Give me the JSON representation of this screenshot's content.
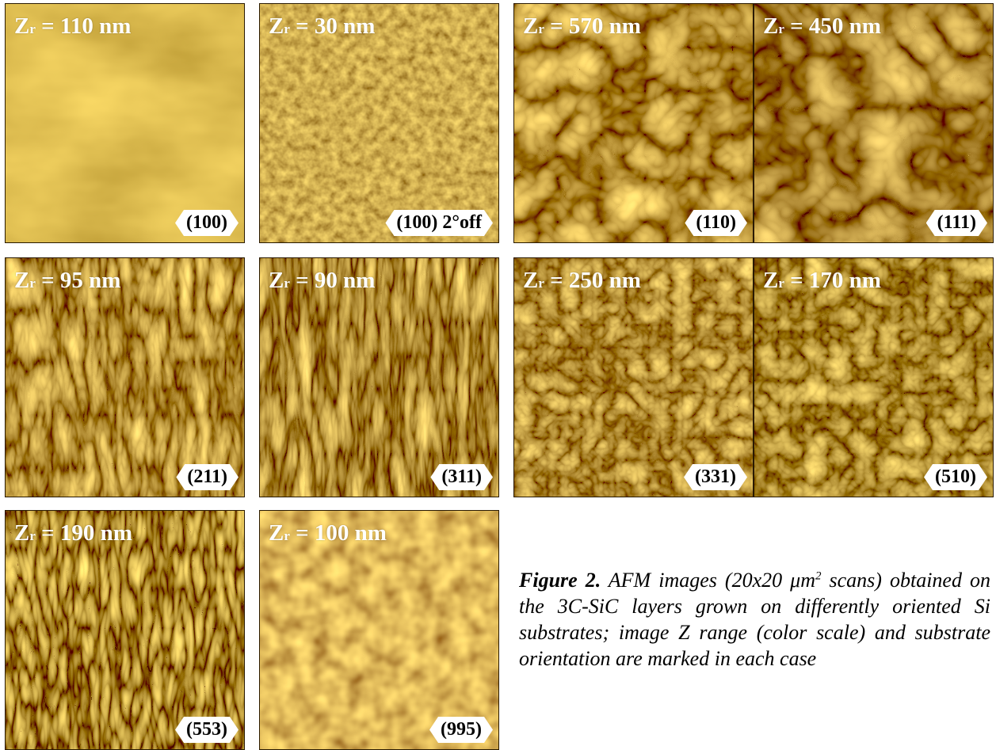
{
  "panels": [
    {
      "z_prefix": "Z",
      "z_sub": "r",
      "z_value": " = 110 nm",
      "orientation": "(100)",
      "texture": "tex-smooth",
      "base": "#c58f14"
    },
    {
      "z_prefix": "Z",
      "z_sub": "r",
      "z_value": " = 30 nm",
      "orientation": "(100) 2°off",
      "texture": "tex-grain",
      "base": "#9e6a08"
    },
    {
      "z_prefix": "Z",
      "z_sub": "r",
      "z_value": " = 570 nm",
      "orientation": "(110)",
      "texture": "tex-blocky",
      "base": "#b17a0c"
    },
    {
      "z_prefix": "Z",
      "z_sub": "r",
      "z_value": " = 450 nm",
      "orientation": "(111)",
      "texture": "tex-blocky2",
      "base": "#a56f0a"
    },
    {
      "z_prefix": "Z",
      "z_sub": "r",
      "z_value": " = 95 nm",
      "orientation": "(211)",
      "texture": "tex-streak",
      "base": "#a36b08"
    },
    {
      "z_prefix": "Z",
      "z_sub": "r",
      "z_value": " = 90 nm",
      "orientation": "(311)",
      "texture": "tex-streakv",
      "base": "#9a6406"
    },
    {
      "z_prefix": "Z",
      "z_sub": "r",
      "z_value": " = 250 nm",
      "orientation": "(331)",
      "texture": "tex-facet",
      "base": "#a97208"
    },
    {
      "z_prefix": "Z",
      "z_sub": "r",
      "z_value": " = 170 nm",
      "orientation": "(510)",
      "texture": "tex-facet2",
      "base": "#9d6708"
    },
    {
      "z_prefix": "Z",
      "z_sub": "r",
      "z_value": " = 190 nm",
      "orientation": "(553)",
      "texture": "tex-ridge",
      "base": "#a06a08"
    },
    {
      "z_prefix": "Z",
      "z_sub": "r",
      "z_value": " = 100 nm",
      "orientation": "(995)",
      "texture": "tex-cells",
      "base": "#c58a0e"
    }
  ],
  "caption": {
    "figure": "Figure 2.",
    "before_sup": " AFM images (20x20 μm",
    "sup": "2",
    "after_sup": " scans) obtained on the 3C-SiC layers grown on differently oriented Si substrates; image Z range (color scale) and substrate orientation are marked in each case"
  },
  "colors": {
    "afm_dark": "#4a2a00",
    "afm_mid": "#b07a0a",
    "afm_light": "#f8e08a"
  }
}
